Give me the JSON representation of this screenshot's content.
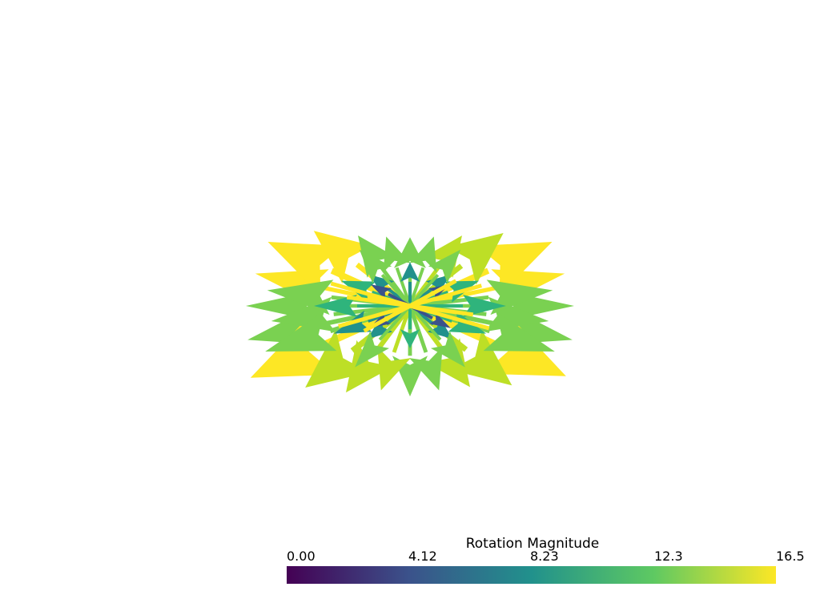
{
  "chart_data": {
    "type": "glyph-field",
    "scalar_bar": {
      "title": "Rotation Magnitude",
      "range": [
        0.0,
        16.5
      ],
      "ticks": [
        "0.00",
        "4.12",
        "8.23",
        "12.3",
        "16.5"
      ],
      "colormap": "viridis",
      "colors": [
        "#440154",
        "#3b528b",
        "#21918c",
        "#5ec962",
        "#fde725"
      ]
    },
    "glyphs": {
      "shape": "arrow",
      "layout": "radial",
      "magnitude_palette": {
        "low": "#3b528b",
        "mid": "#21918c",
        "teal_green": "#2fb47c",
        "green": "#7ad151",
        "yellow_green": "#bddf26",
        "yellow": "#fde725"
      }
    }
  }
}
